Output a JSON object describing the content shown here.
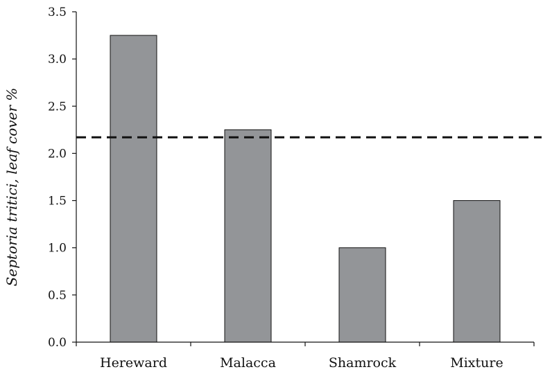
{
  "chart_data": {
    "type": "bar",
    "title": "",
    "xlabel": "",
    "ylabel": "Septoria tritici, leaf cover %",
    "categories": [
      "Hereward",
      "Malacca",
      "Shamrock",
      "Mixture"
    ],
    "values": [
      3.25,
      2.25,
      1.0,
      1.5
    ],
    "ylim": [
      0,
      3.5
    ],
    "yticks": [
      0.0,
      0.5,
      1.0,
      1.5,
      2.0,
      2.5,
      3.0,
      3.5
    ],
    "ytick_labels": [
      "0.0",
      "0.5",
      "1.0",
      "1.5",
      "2.0",
      "2.5",
      "3.0",
      "3.5"
    ],
    "reference_line": {
      "value": 2.17,
      "style": "dashed"
    },
    "grid": false,
    "legend": "none",
    "colors": {
      "bar_fill": "#939598",
      "bar_stroke": "#111111",
      "axis": "#111111",
      "reference_line": "#111111"
    }
  }
}
